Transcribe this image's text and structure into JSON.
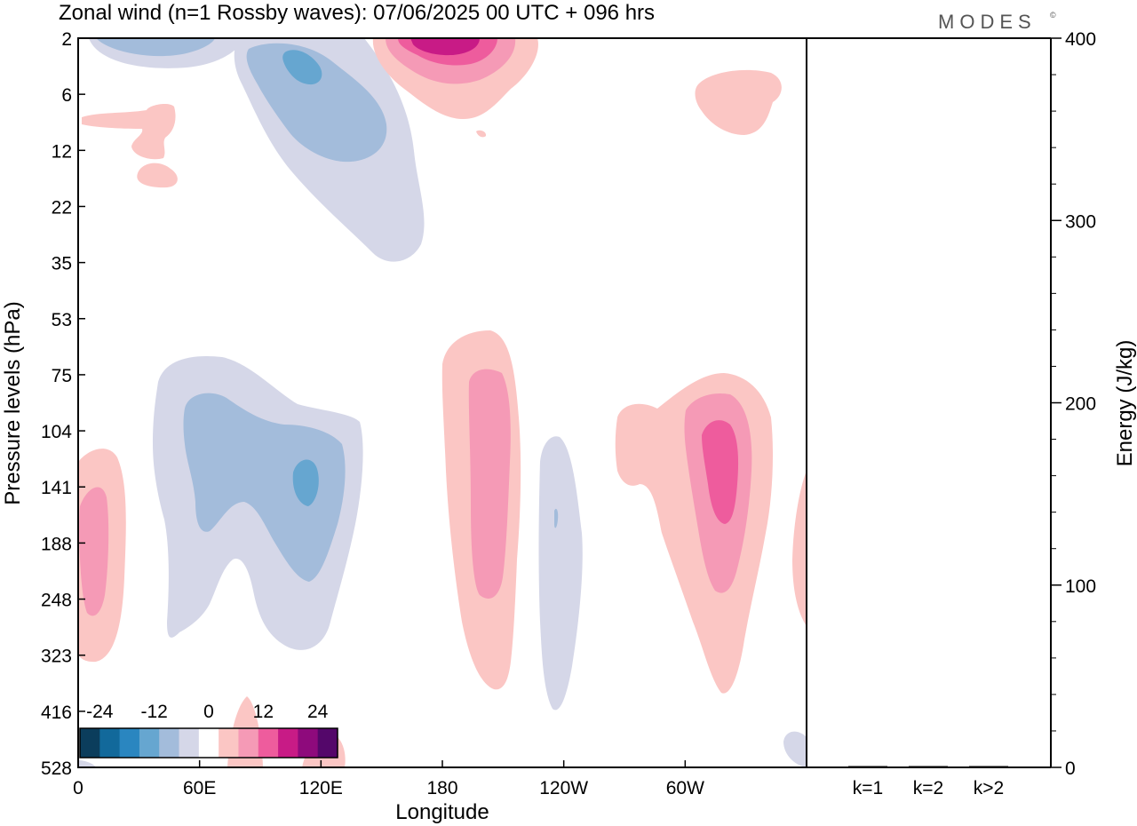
{
  "header": {
    "title": "Zonal wind (n=1 Rossby waves):  07/06/2025  00 UTC  + 096 hrs",
    "logo": "MODES",
    "logo_mark": "©"
  },
  "chart_data": [
    {
      "type": "heatmap",
      "title": "Zonal wind (n=1 Rossby waves):  07/06/2025  00 UTC  + 096 hrs",
      "xlabel": "Longitude",
      "ylabel": "Pressure levels (hPa)",
      "x_ticks": [
        "0",
        "60E",
        "120E",
        "180",
        "120W",
        "60W"
      ],
      "x_tick_values": [
        0,
        60,
        120,
        180,
        240,
        300
      ],
      "xlim": [
        0,
        360
      ],
      "y_ticks": [
        "2",
        "6",
        "12",
        "22",
        "35",
        "53",
        "75",
        "104",
        "141",
        "188",
        "248",
        "323",
        "416",
        "528"
      ],
      "y_axis_inverted": true,
      "contour_levels": [
        -24,
        -18,
        -12,
        -9,
        -6,
        -3,
        3,
        6,
        9,
        12,
        18,
        24
      ],
      "colorbar": {
        "labels": [
          "-24",
          "-12",
          "0",
          "12",
          "24"
        ],
        "colors": [
          "#0b3d5c",
          "#12699b",
          "#2a86c0",
          "#66a6d0",
          "#a3bcdb",
          "#d5d7e8",
          "#ffffff",
          "#fbc6c4",
          "#f59ab6",
          "#ee5c9d",
          "#c81b86",
          "#8e0a7c",
          "#54076a"
        ]
      },
      "regions": [
        {
          "sign": "negative",
          "lon": [
            5,
            50
          ],
          "pressure": [
            2,
            8
          ],
          "peak": -6
        },
        {
          "sign": "negative",
          "lon": [
            40,
            170
          ],
          "pressure": [
            2,
            38
          ],
          "peak": -9
        },
        {
          "sign": "positive",
          "lon": [
            140,
            220
          ],
          "pressure": [
            2,
            12
          ],
          "peak": 18
        },
        {
          "sign": "positive",
          "lon": [
            0,
            45
          ],
          "pressure": [
            8,
            18
          ],
          "peak": 3
        },
        {
          "sign": "positive",
          "lon": [
            300,
            345
          ],
          "pressure": [
            5,
            11
          ],
          "peak": 3
        },
        {
          "sign": "negative",
          "lon": [
            35,
            140
          ],
          "pressure": [
            80,
            325
          ],
          "peak": -9
        },
        {
          "sign": "positive",
          "lon": [
            0,
            22
          ],
          "pressure": [
            110,
            335
          ],
          "peak": 9
        },
        {
          "sign": "positive",
          "lon": [
            180,
            215
          ],
          "pressure": [
            55,
            400
          ],
          "peak": 9
        },
        {
          "sign": "negative",
          "lon": [
            222,
            248
          ],
          "pressure": [
            110,
            420
          ],
          "peak": -3
        },
        {
          "sign": "positive",
          "lon": [
            265,
            340
          ],
          "pressure": [
            100,
            400
          ],
          "peak": 12
        },
        {
          "sign": "positive",
          "lon": [
            350,
            360
          ],
          "pressure": [
            140,
            290
          ],
          "peak": 3
        }
      ]
    },
    {
      "type": "bar",
      "categories": [
        "k=1",
        "k=2",
        "k>2"
      ],
      "values": [
        0.3,
        0.6,
        0.3
      ],
      "ylabel": "Energy (J/kg)",
      "ylim": [
        0,
        400
      ],
      "y_ticks": [
        "0",
        "100",
        "200",
        "300",
        "400"
      ],
      "y_tick_values": [
        0,
        100,
        200,
        300,
        400
      ]
    }
  ]
}
